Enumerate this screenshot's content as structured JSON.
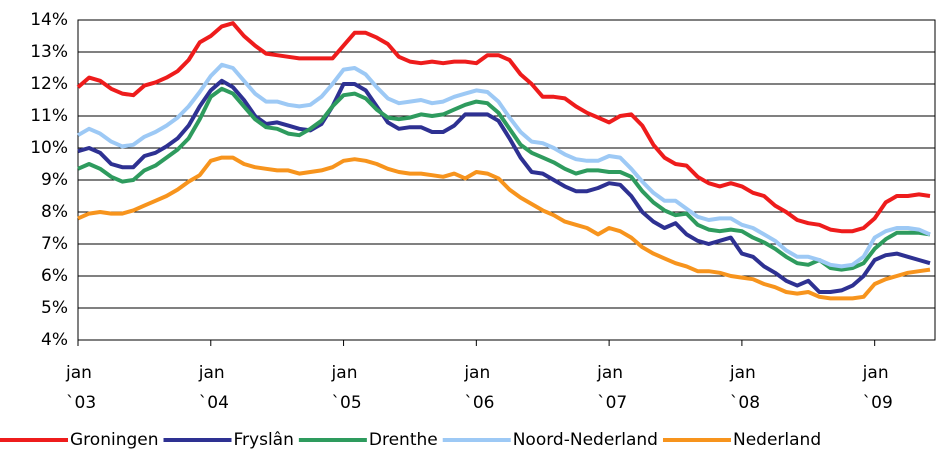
{
  "chart_data": {
    "type": "line",
    "categories": [
      "jan\n`03",
      null,
      null,
      null,
      null,
      null,
      null,
      null,
      null,
      null,
      null,
      null,
      "jan\n`04",
      null,
      null,
      null,
      null,
      null,
      null,
      null,
      null,
      null,
      null,
      null,
      "jan\n`05",
      null,
      null,
      null,
      null,
      null,
      null,
      null,
      null,
      null,
      null,
      null,
      "jan\n`06",
      null,
      null,
      null,
      null,
      null,
      null,
      null,
      null,
      null,
      null,
      null,
      "jan\n`07",
      null,
      null,
      null,
      null,
      null,
      null,
      null,
      null,
      null,
      null,
      null,
      "jan\n`08",
      null,
      null,
      null,
      null,
      null,
      null,
      null,
      null,
      null,
      null,
      null,
      "jan\n`09",
      null,
      null,
      null,
      null,
      null
    ],
    "series": [
      {
        "name": "Groningen",
        "color": "#ee1c1c",
        "values": [
          11.9,
          12.2,
          12.1,
          11.85,
          11.7,
          11.65,
          11.95,
          12.05,
          12.2,
          12.4,
          12.75,
          13.3,
          13.5,
          13.8,
          13.9,
          13.5,
          13.2,
          12.95,
          12.9,
          12.85,
          12.8,
          12.8,
          12.8,
          12.8,
          13.2,
          13.6,
          13.6,
          13.45,
          13.25,
          12.85,
          12.7,
          12.65,
          12.7,
          12.65,
          12.7,
          12.7,
          12.65,
          12.9,
          12.9,
          12.75,
          12.3,
          12.0,
          11.6,
          11.6,
          11.55,
          11.3,
          11.1,
          10.95,
          10.8,
          11.0,
          11.05,
          10.7,
          10.1,
          9.7,
          9.5,
          9.45,
          9.1,
          8.9,
          8.8,
          8.9,
          8.8,
          8.6,
          8.5,
          8.2,
          8.0,
          7.75,
          7.65,
          7.6,
          7.45,
          7.4,
          7.4,
          7.5,
          7.8,
          8.3,
          8.5,
          8.5,
          8.55,
          8.5
        ]
      },
      {
        "name": "Fryslân",
        "color": "#2e3192",
        "values": [
          9.9,
          10.0,
          9.85,
          9.5,
          9.4,
          9.4,
          9.75,
          9.85,
          10.05,
          10.3,
          10.7,
          11.3,
          11.8,
          12.1,
          11.9,
          11.5,
          11.0,
          10.75,
          10.8,
          10.7,
          10.6,
          10.55,
          10.75,
          11.3,
          12.0,
          12.0,
          11.8,
          11.3,
          10.8,
          10.6,
          10.65,
          10.65,
          10.5,
          10.5,
          10.7,
          11.05,
          11.05,
          11.05,
          10.85,
          10.3,
          9.7,
          9.25,
          9.2,
          9.0,
          8.8,
          8.65,
          8.65,
          8.75,
          8.9,
          8.85,
          8.5,
          8.0,
          7.7,
          7.5,
          7.65,
          7.3,
          7.1,
          7.0,
          7.1,
          7.2,
          6.7,
          6.6,
          6.3,
          6.1,
          5.85,
          5.7,
          5.85,
          5.5,
          5.5,
          5.55,
          5.7,
          6.0,
          6.5,
          6.65,
          6.7,
          6.6,
          6.5,
          6.4
        ]
      },
      {
        "name": "Drenthe",
        "color": "#2e9b5e",
        "values": [
          9.35,
          9.5,
          9.35,
          9.1,
          8.95,
          9.0,
          9.3,
          9.45,
          9.7,
          9.95,
          10.3,
          10.9,
          11.6,
          11.85,
          11.7,
          11.3,
          10.9,
          10.65,
          10.6,
          10.45,
          10.4,
          10.6,
          10.85,
          11.3,
          11.65,
          11.7,
          11.55,
          11.2,
          10.95,
          10.9,
          10.95,
          11.05,
          11.0,
          11.05,
          11.2,
          11.35,
          11.45,
          11.4,
          11.1,
          10.6,
          10.1,
          9.85,
          9.7,
          9.55,
          9.35,
          9.2,
          9.3,
          9.3,
          9.25,
          9.25,
          9.1,
          8.65,
          8.3,
          8.05,
          7.9,
          7.95,
          7.6,
          7.45,
          7.4,
          7.45,
          7.4,
          7.2,
          7.05,
          6.85,
          6.6,
          6.4,
          6.35,
          6.5,
          6.25,
          6.2,
          6.25,
          6.4,
          6.85,
          7.15,
          7.35,
          7.35,
          7.35,
          7.3
        ]
      },
      {
        "name": "Noord-Nederland",
        "color": "#9dc9f5",
        "values": [
          10.4,
          10.6,
          10.45,
          10.2,
          10.05,
          10.1,
          10.35,
          10.5,
          10.7,
          10.95,
          11.3,
          11.75,
          12.25,
          12.6,
          12.5,
          12.1,
          11.7,
          11.45,
          11.45,
          11.35,
          11.3,
          11.35,
          11.6,
          12.0,
          12.45,
          12.5,
          12.3,
          11.9,
          11.55,
          11.4,
          11.45,
          11.5,
          11.4,
          11.45,
          11.6,
          11.7,
          11.8,
          11.75,
          11.45,
          10.95,
          10.5,
          10.2,
          10.15,
          10.0,
          9.8,
          9.65,
          9.6,
          9.6,
          9.75,
          9.7,
          9.35,
          8.95,
          8.6,
          8.35,
          8.35,
          8.1,
          7.85,
          7.75,
          7.8,
          7.8,
          7.6,
          7.5,
          7.3,
          7.1,
          6.8,
          6.6,
          6.6,
          6.5,
          6.35,
          6.3,
          6.35,
          6.6,
          7.2,
          7.4,
          7.5,
          7.5,
          7.45,
          7.3
        ]
      },
      {
        "name": "Nederland",
        "color": "#f7941d",
        "values": [
          7.8,
          7.95,
          8.0,
          7.95,
          7.95,
          8.05,
          8.2,
          8.35,
          8.5,
          8.7,
          8.95,
          9.15,
          9.6,
          9.7,
          9.7,
          9.5,
          9.4,
          9.35,
          9.3,
          9.3,
          9.2,
          9.25,
          9.3,
          9.4,
          9.6,
          9.65,
          9.6,
          9.5,
          9.35,
          9.25,
          9.2,
          9.2,
          9.15,
          9.1,
          9.2,
          9.05,
          9.25,
          9.2,
          9.05,
          8.7,
          8.45,
          8.25,
          8.05,
          7.9,
          7.7,
          7.6,
          7.5,
          7.3,
          7.5,
          7.4,
          7.2,
          6.9,
          6.7,
          6.55,
          6.4,
          6.3,
          6.15,
          6.15,
          6.1,
          6.0,
          5.95,
          5.9,
          5.75,
          5.65,
          5.5,
          5.45,
          5.5,
          5.35,
          5.3,
          5.3,
          5.3,
          5.35,
          5.75,
          5.9,
          6.0,
          6.1,
          6.15,
          6.2
        ]
      }
    ],
    "ylim": [
      4,
      14
    ],
    "yticks": [
      {
        "value": 4,
        "label": "4%"
      },
      {
        "value": 5,
        "label": "5%"
      },
      {
        "value": 6,
        "label": "6%"
      },
      {
        "value": 7,
        "label": "7%"
      },
      {
        "value": 8,
        "label": "8%"
      },
      {
        "value": 9,
        "label": "9%"
      },
      {
        "value": 10,
        "label": "10%"
      },
      {
        "value": 11,
        "label": "11%"
      },
      {
        "value": 12,
        "label": "12%"
      },
      {
        "value": 13,
        "label": "13%"
      },
      {
        "value": 14,
        "label": "14%"
      }
    ],
    "grid": true,
    "legend": "bottom"
  }
}
